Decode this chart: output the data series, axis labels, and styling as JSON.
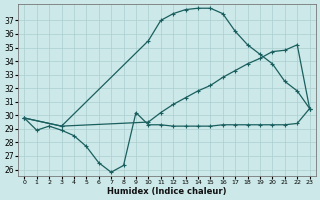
{
  "xlabel": "Humidex (Indice chaleur)",
  "background_color": "#cce8e8",
  "grid_color": "#aacfcf",
  "line_color": "#1a5f5f",
  "xlim": [
    -0.5,
    23.5
  ],
  "ylim": [
    25.5,
    38.2
  ],
  "yticks": [
    26,
    27,
    28,
    29,
    30,
    31,
    32,
    33,
    34,
    35,
    36,
    37
  ],
  "xticks": [
    0,
    1,
    2,
    3,
    4,
    5,
    6,
    7,
    8,
    9,
    10,
    11,
    12,
    13,
    14,
    15,
    16,
    17,
    18,
    19,
    20,
    21,
    22,
    23
  ],
  "curve_valley_x": [
    0,
    1,
    2,
    3,
    4,
    5,
    6,
    7,
    8,
    9,
    10,
    11,
    12,
    13,
    14,
    15,
    16,
    17,
    18,
    19,
    20,
    21,
    22,
    23
  ],
  "curve_valley_y": [
    29.8,
    28.9,
    29.2,
    28.9,
    28.5,
    27.7,
    26.5,
    25.8,
    26.3,
    30.2,
    29.3,
    29.3,
    29.2,
    29.2,
    29.2,
    29.2,
    29.3,
    29.3,
    29.3,
    29.3,
    29.3,
    29.3,
    29.4,
    30.5
  ],
  "curve_arch_x": [
    0,
    3,
    10,
    11,
    12,
    13,
    14,
    15,
    16,
    17,
    18,
    19,
    20,
    21,
    22,
    23
  ],
  "curve_arch_y": [
    29.8,
    29.2,
    35.5,
    37.0,
    37.5,
    37.8,
    37.9,
    37.9,
    37.5,
    36.2,
    35.2,
    34.5,
    33.8,
    32.5,
    31.8,
    30.5
  ],
  "curve_rise_x": [
    0,
    3,
    10,
    11,
    12,
    13,
    14,
    15,
    16,
    17,
    18,
    19,
    20,
    21,
    22,
    23
  ],
  "curve_rise_y": [
    29.8,
    29.2,
    29.5,
    30.2,
    30.8,
    31.3,
    31.8,
    32.2,
    32.8,
    33.3,
    33.8,
    34.2,
    34.7,
    34.8,
    35.2,
    30.5
  ]
}
